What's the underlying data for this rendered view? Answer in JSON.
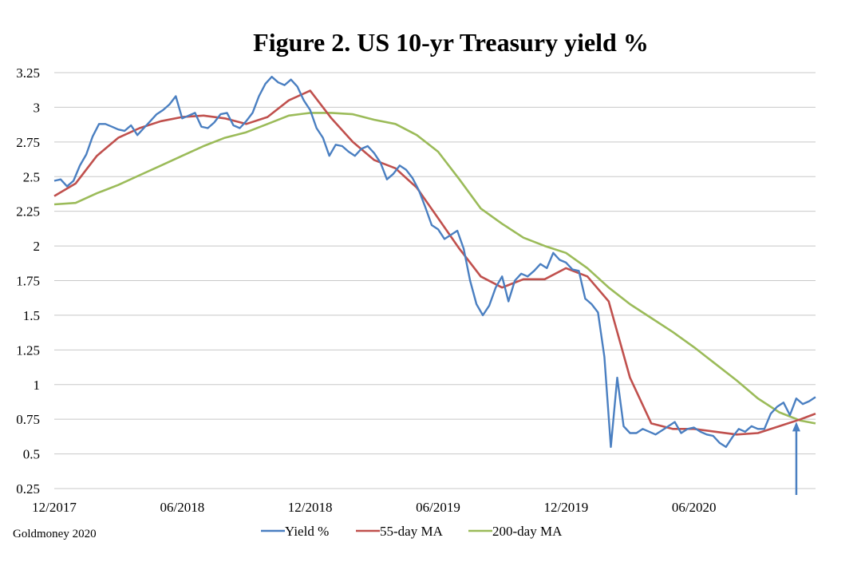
{
  "chart_data": {
    "type": "line",
    "title": "Figure 2. US 10-yr Treasury yield %",
    "source": "Goldmoney 2020",
    "x_tick_labels": [
      "12/2017",
      "06/2018",
      "12/2018",
      "06/2019",
      "12/2019",
      "06/2020"
    ],
    "x_tick_months": [
      0,
      6,
      12,
      18,
      24,
      30
    ],
    "xlim": [
      0,
      35.7
    ],
    "ylim": [
      0.25,
      3.25
    ],
    "y_ticks": [
      {
        "value": 0.25,
        "label": "0.25"
      },
      {
        "value": 0.5,
        "label": "0.5"
      },
      {
        "value": 0.75,
        "label": "0.75"
      },
      {
        "value": 1.0,
        "label": "1"
      },
      {
        "value": 1.25,
        "label": "1.25"
      },
      {
        "value": 1.5,
        "label": "1.5"
      },
      {
        "value": 1.75,
        "label": "1.75"
      },
      {
        "value": 2.0,
        "label": "2"
      },
      {
        "value": 2.25,
        "label": "2.25"
      },
      {
        "value": 2.5,
        "label": "2.5"
      },
      {
        "value": 2.75,
        "label": "2.75"
      },
      {
        "value": 3.0,
        "label": "3"
      },
      {
        "value": 3.25,
        "label": "3.25"
      }
    ],
    "grid": "horizontal",
    "legend_position": "bottom",
    "annotation": {
      "type": "arrow",
      "x": 34.8,
      "from_y": 0.25,
      "to_y": 0.72,
      "color": "#4a7fc1"
    },
    "series": [
      {
        "name": "Yield %",
        "color": "#4a7fc1",
        "x": [
          0,
          0.3,
          0.6,
          0.9,
          1.2,
          1.5,
          1.8,
          2.1,
          2.4,
          2.7,
          3.0,
          3.3,
          3.6,
          3.9,
          4.2,
          4.5,
          4.8,
          5.1,
          5.4,
          5.7,
          6.0,
          6.3,
          6.6,
          6.9,
          7.2,
          7.5,
          7.8,
          8.1,
          8.4,
          8.7,
          9.0,
          9.3,
          9.6,
          9.9,
          10.2,
          10.5,
          10.8,
          11.1,
          11.4,
          11.7,
          12.0,
          12.3,
          12.6,
          12.9,
          13.2,
          13.5,
          13.8,
          14.1,
          14.4,
          14.7,
          15.0,
          15.3,
          15.6,
          15.9,
          16.2,
          16.5,
          16.8,
          17.1,
          17.4,
          17.7,
          18.0,
          18.3,
          18.6,
          18.9,
          19.2,
          19.5,
          19.8,
          20.1,
          20.4,
          20.7,
          21.0,
          21.3,
          21.6,
          21.9,
          22.2,
          22.5,
          22.8,
          23.1,
          23.4,
          23.7,
          24.0,
          24.3,
          24.6,
          24.9,
          25.2,
          25.5,
          25.8,
          26.1,
          26.4,
          26.7,
          27.0,
          27.3,
          27.6,
          27.9,
          28.2,
          28.5,
          28.8,
          29.1,
          29.4,
          29.7,
          30.0,
          30.3,
          30.6,
          30.9,
          31.2,
          31.5,
          31.8,
          32.1,
          32.4,
          32.7,
          33.0,
          33.3,
          33.6,
          33.9,
          34.2,
          34.5,
          34.8,
          35.1,
          35.4,
          35.7
        ],
        "values": [
          2.47,
          2.48,
          2.43,
          2.47,
          2.58,
          2.66,
          2.79,
          2.88,
          2.88,
          2.86,
          2.84,
          2.83,
          2.87,
          2.8,
          2.85,
          2.9,
          2.95,
          2.98,
          3.02,
          3.08,
          2.92,
          2.94,
          2.96,
          2.86,
          2.85,
          2.89,
          2.95,
          2.96,
          2.87,
          2.85,
          2.9,
          2.96,
          3.08,
          3.17,
          3.22,
          3.18,
          3.16,
          3.2,
          3.15,
          3.05,
          2.98,
          2.85,
          2.78,
          2.65,
          2.73,
          2.72,
          2.68,
          2.65,
          2.7,
          2.72,
          2.67,
          2.6,
          2.48,
          2.52,
          2.58,
          2.55,
          2.49,
          2.4,
          2.28,
          2.15,
          2.12,
          2.05,
          2.08,
          2.11,
          1.98,
          1.75,
          1.58,
          1.5,
          1.57,
          1.7,
          1.78,
          1.6,
          1.75,
          1.8,
          1.78,
          1.82,
          1.87,
          1.84,
          1.95,
          1.9,
          1.88,
          1.83,
          1.82,
          1.62,
          1.58,
          1.52,
          1.2,
          0.55,
          1.05,
          0.7,
          0.65,
          0.65,
          0.68,
          0.66,
          0.64,
          0.67,
          0.7,
          0.73,
          0.65,
          0.68,
          0.69,
          0.66,
          0.64,
          0.63,
          0.58,
          0.55,
          0.62,
          0.68,
          0.66,
          0.7,
          0.68,
          0.68,
          0.79,
          0.84,
          0.87,
          0.78,
          0.9,
          0.86,
          0.88,
          0.91
        ]
      },
      {
        "name": "55-day MA",
        "color": "#c0504d",
        "x": [
          0,
          1,
          2,
          3,
          4,
          5,
          6,
          7,
          8,
          9,
          10,
          11,
          12,
          13,
          14,
          15,
          16,
          17,
          18,
          19,
          20,
          21,
          22,
          23,
          24,
          25,
          26,
          27,
          28,
          29,
          30,
          31,
          32,
          33,
          34,
          35,
          35.7
        ],
        "values": [
          2.36,
          2.45,
          2.65,
          2.78,
          2.85,
          2.9,
          2.93,
          2.94,
          2.92,
          2.88,
          2.93,
          3.05,
          3.12,
          2.92,
          2.75,
          2.62,
          2.56,
          2.42,
          2.2,
          1.98,
          1.78,
          1.7,
          1.76,
          1.76,
          1.84,
          1.78,
          1.6,
          1.05,
          0.72,
          0.68,
          0.68,
          0.66,
          0.64,
          0.65,
          0.7,
          0.75,
          0.79
        ]
      },
      {
        "name": "200-day MA",
        "color": "#9bbb59",
        "x": [
          0,
          1,
          2,
          3,
          4,
          5,
          6,
          7,
          8,
          9,
          10,
          11,
          12,
          13,
          14,
          15,
          16,
          17,
          18,
          19,
          20,
          21,
          22,
          23,
          24,
          25,
          26,
          27,
          28,
          29,
          30,
          31,
          32,
          33,
          34,
          35,
          35.7
        ],
        "values": [
          2.3,
          2.31,
          2.38,
          2.44,
          2.51,
          2.58,
          2.65,
          2.72,
          2.78,
          2.82,
          2.88,
          2.94,
          2.96,
          2.96,
          2.95,
          2.91,
          2.88,
          2.8,
          2.68,
          2.48,
          2.27,
          2.16,
          2.06,
          2.0,
          1.95,
          1.84,
          1.7,
          1.58,
          1.48,
          1.38,
          1.27,
          1.15,
          1.03,
          0.9,
          0.8,
          0.74,
          0.72
        ]
      }
    ]
  }
}
